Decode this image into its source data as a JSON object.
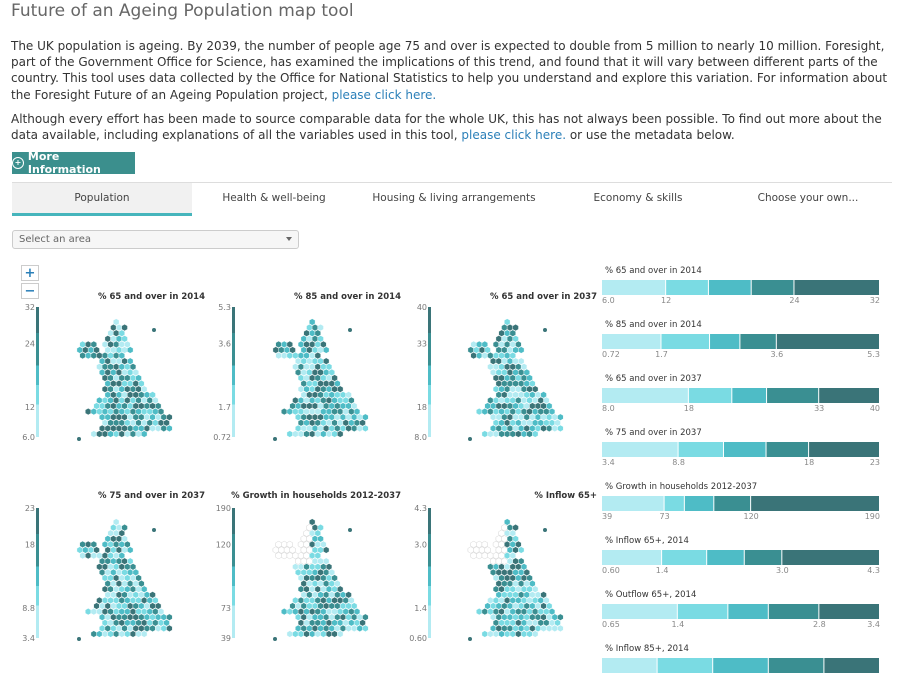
{
  "page": {
    "title": "Future of an Ageing Population map tool",
    "intro": {
      "text": "The UK population is ageing. By 2039, the number of people age 75 and over is expected to double from 5 million to nearly 10 million. Foresight, part of the Government Office for Science, has examined the implications of this trend, and found that it will vary between different parts of the country. This tool uses data collected by the Office for National Statistics to help you understand and explore this variation. For information about the Foresight Future of an Ageing Population project, ",
      "link": "please click here."
    },
    "note": {
      "text": "Although every effort has been made to source comparable data for the whole UK, this has not always been possible. To find out more about the data available, including explanations of all the variables used in this tool, ",
      "link": "please click here.",
      "after": " or use the metadata below."
    },
    "more_button": "More Information"
  },
  "tabs": [
    {
      "label": "Population",
      "active": true
    },
    {
      "label": "Health & well-being",
      "active": false
    },
    {
      "label": "Housing & living arrangements",
      "active": false
    },
    {
      "label": "Economy & skills",
      "active": false
    },
    {
      "label": "Choose your own...",
      "active": false
    }
  ],
  "area_select": {
    "placeholder": "Select an area"
  },
  "zoom": {
    "in": "+",
    "out": "−"
  },
  "colors": {
    "c1": "#b3ebf2",
    "c2": "#7adbe3",
    "c3": "#4ebcc6",
    "c4": "#3a8f92",
    "c5": "#3a7478",
    "teal_button": "#3b8f8d",
    "tab_underline": "#46b5bc",
    "link": "#2a7fb8"
  },
  "maps": [
    {
      "title": "% 65 and over in 2014",
      "ticks": [
        "32",
        "24",
        "12",
        "6.0"
      ]
    },
    {
      "title": "% 85 and over in 2014",
      "ticks": [
        "5.3",
        "3.6",
        "1.7",
        "0.72"
      ]
    },
    {
      "title": "% 65 and over in 2037",
      "ticks": [
        "40",
        "33",
        "18",
        "8.0"
      ]
    },
    {
      "title": "% 75 and over in 2037",
      "ticks": [
        "23",
        "18",
        "8.8",
        "3.4"
      ]
    },
    {
      "title": "% Growth in households 2012-2037",
      "ticks": [
        "190",
        "120",
        "73",
        "39"
      ]
    },
    {
      "title": "% Inflow 65+",
      "ticks": [
        "4.3",
        "3.0",
        "1.4",
        "0.60"
      ]
    }
  ],
  "legends": [
    {
      "title": "% 65 and over in 2014",
      "ticks": [
        "6.0",
        "12",
        "24",
        "32"
      ],
      "breaks": [
        6.0,
        12,
        16,
        20,
        24,
        32
      ]
    },
    {
      "title": "% 85 and over in 2014",
      "ticks": [
        "0.72",
        "1.7",
        "3.6",
        "5.3"
      ],
      "breaks": [
        0.72,
        1.7,
        2.5,
        3.0,
        3.6,
        5.3
      ]
    },
    {
      "title": "% 65 and over in 2037",
      "ticks": [
        "8.0",
        "18",
        "33",
        "40"
      ],
      "breaks": [
        8.0,
        18,
        23,
        27,
        33,
        40
      ]
    },
    {
      "title": "% 75 and over in 2037",
      "ticks": [
        "3.4",
        "8.8",
        "18",
        "23"
      ],
      "breaks": [
        3.4,
        8.8,
        12,
        15,
        18,
        23
      ]
    },
    {
      "title": "% Growth in households 2012-2037",
      "ticks": [
        "39",
        "73",
        "120",
        "190"
      ],
      "breaks": [
        39,
        73,
        84,
        100,
        120,
        190
      ]
    },
    {
      "title": "% Inflow 65+, 2014",
      "ticks": [
        "0.60",
        "1.4",
        "3.0",
        "4.3"
      ],
      "breaks": [
        0.6,
        1.4,
        2.0,
        2.5,
        3.0,
        4.3
      ]
    },
    {
      "title": "% Outflow 65+, 2014",
      "ticks": [
        "0.65",
        "1.4",
        "2.8",
        "3.4"
      ],
      "breaks": [
        0.65,
        1.4,
        1.9,
        2.3,
        2.8,
        3.4
      ]
    },
    {
      "title": "% Inflow 85+, 2014",
      "ticks": [],
      "breaks": [
        0,
        1,
        2,
        3,
        4,
        5
      ]
    }
  ]
}
